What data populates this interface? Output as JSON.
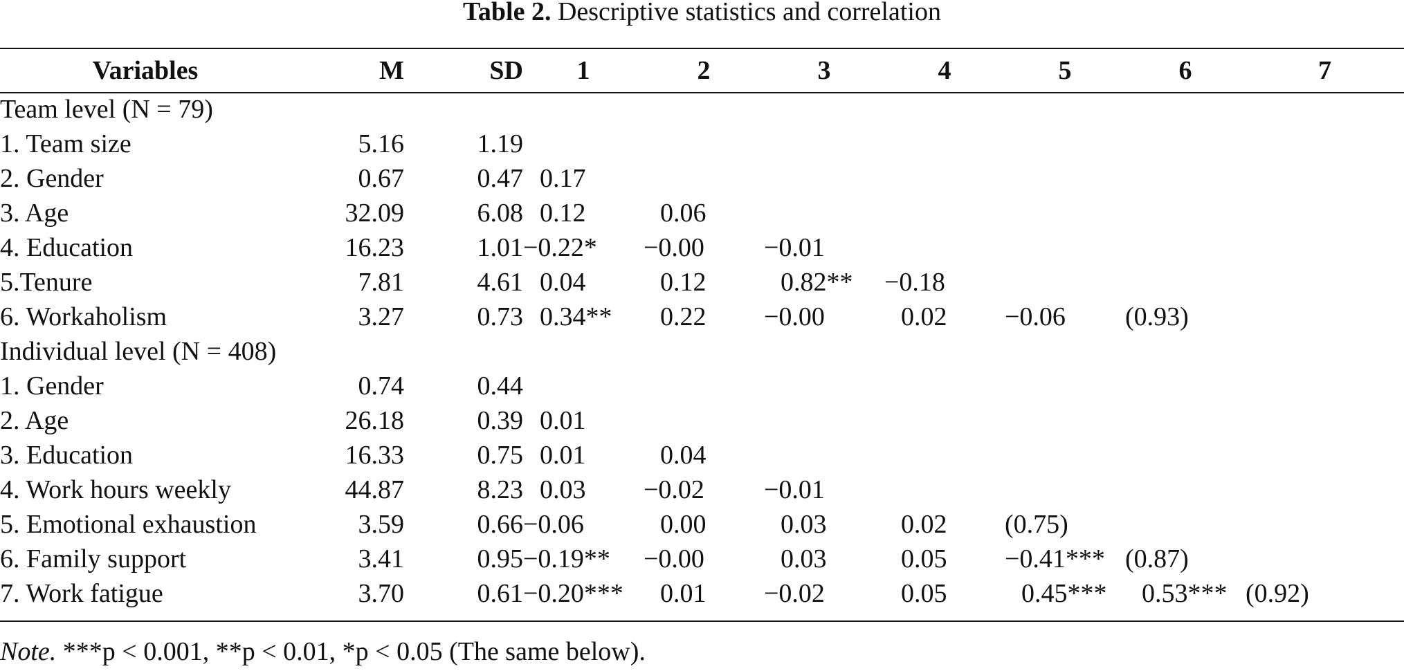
{
  "caption": {
    "label": "Table 2.",
    "text": "Descriptive statistics and correlation"
  },
  "headers": {
    "variables": "Variables",
    "m": "M",
    "sd": "SD",
    "c1": "1",
    "c2": "2",
    "c3": "3",
    "c4": "4",
    "c5": "5",
    "c6": "6",
    "c7": "7"
  },
  "team": {
    "label": "Team level (N = 79)",
    "rows": [
      {
        "name": "1. Team size",
        "m": "5.16",
        "sd": "1.19",
        "c1": "",
        "c2": "",
        "c3": "",
        "c4": "",
        "c5": "",
        "c6": "",
        "c7": ""
      },
      {
        "name": "2. Gender",
        "m": "0.67",
        "sd": "0.47",
        "c1": "0.17",
        "c2": "",
        "c3": "",
        "c4": "",
        "c5": "",
        "c6": "",
        "c7": ""
      },
      {
        "name": "3. Age",
        "m": "32.09",
        "sd": "6.08",
        "c1": "0.12",
        "c2": "0.06",
        "c3": "",
        "c4": "",
        "c5": "",
        "c6": "",
        "c7": ""
      },
      {
        "name": "4. Education",
        "m": "16.23",
        "sd": "1.01",
        "c1": "−0.22*",
        "c2": "−0.00",
        "c3": "−0.01",
        "c4": "",
        "c5": "",
        "c6": "",
        "c7": ""
      },
      {
        "name": "5.Tenure",
        "m": "7.81",
        "sd": "4.61",
        "c1": "0.04",
        "c2": "0.12",
        "c3": "0.82**",
        "c4": "−0.18",
        "c5": "",
        "c6": "",
        "c7": ""
      },
      {
        "name": "6. Workaholism",
        "m": "3.27",
        "sd": "0.73",
        "c1": "0.34**",
        "c2": "0.22",
        "c3": "−0.00",
        "c4": "0.02",
        "c5": "−0.06",
        "c6": "(0.93)",
        "c7": ""
      }
    ]
  },
  "individual": {
    "label": "Individual level (N = 408)",
    "rows": [
      {
        "name": "1. Gender",
        "m": "0.74",
        "sd": "0.44",
        "c1": "",
        "c2": "",
        "c3": "",
        "c4": "",
        "c5": "",
        "c6": "",
        "c7": ""
      },
      {
        "name": "2. Age",
        "m": "26.18",
        "sd": "0.39",
        "c1": "0.01",
        "c2": "",
        "c3": "",
        "c4": "",
        "c5": "",
        "c6": "",
        "c7": ""
      },
      {
        "name": "3. Education",
        "m": "16.33",
        "sd": "0.75",
        "c1": "0.01",
        "c2": "0.04",
        "c3": "",
        "c4": "",
        "c5": "",
        "c6": "",
        "c7": ""
      },
      {
        "name": "4. Work hours weekly",
        "m": "44.87",
        "sd": "8.23",
        "c1": "0.03",
        "c2": "−0.02",
        "c3": "−0.01",
        "c4": "",
        "c5": "",
        "c6": "",
        "c7": ""
      },
      {
        "name": "5. Emotional exhaustion",
        "m": "3.59",
        "sd": "0.66",
        "c1": "−0.06",
        "c2": "0.00",
        "c3": "0.03",
        "c4": "0.02",
        "c5": "(0.75)",
        "c6": "",
        "c7": ""
      },
      {
        "name": "6. Family support",
        "m": "3.41",
        "sd": "0.95",
        "c1": "−0.19**",
        "c2": "−0.00",
        "c3": "0.03",
        "c4": "0.05",
        "c5": "−0.41***",
        "c6": "(0.87)",
        "c7": ""
      },
      {
        "name": "7. Work fatigue",
        "m": "3.70",
        "sd": "0.61",
        "c1": "−0.20***",
        "c2": "0.01",
        "c3": "−0.02",
        "c4": "0.05",
        "c5": "0.45***",
        "c6": "0.53***",
        "c7": "(0.92)"
      }
    ]
  },
  "note": {
    "label": "Note.",
    "text": "***p < 0.001, **p < 0.01, *p < 0.05 (The same below)."
  }
}
